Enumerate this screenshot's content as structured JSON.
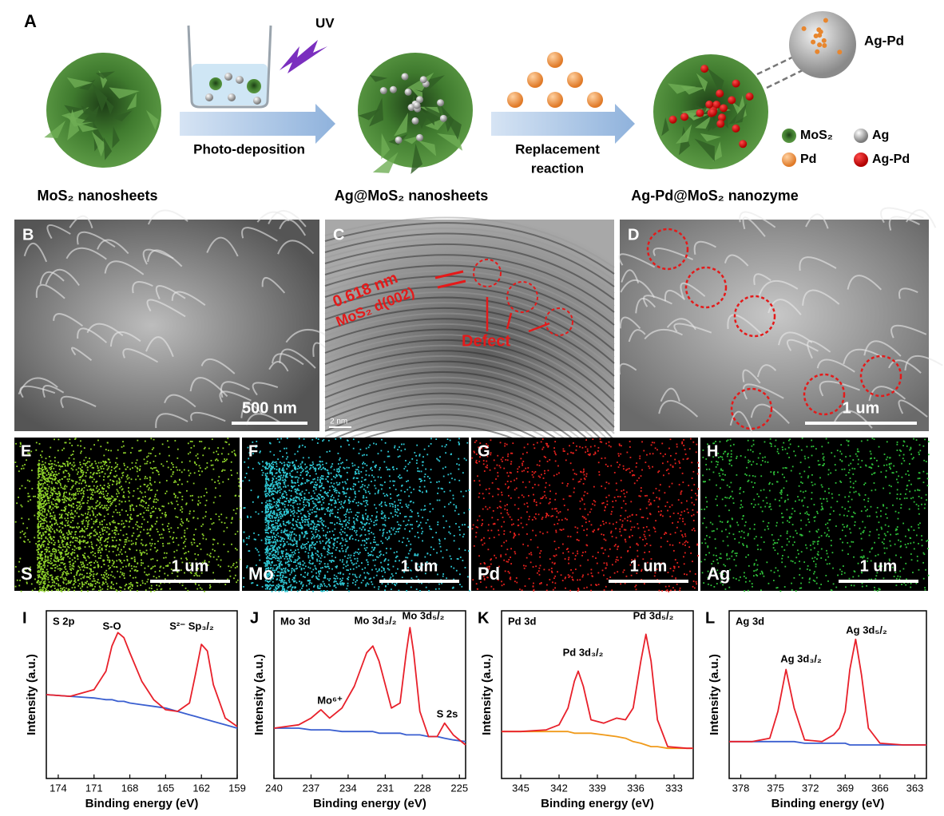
{
  "schematic": {
    "label": "A",
    "uv": "UV",
    "step1": "Photo-deposition",
    "step2_lines": [
      "Replacement",
      "reaction"
    ],
    "stage_labels": [
      "MoS₂ nanosheets",
      "Ag@MoS₂ nanosheets",
      "Ag-Pd@MoS₂ nanozyme"
    ],
    "zoom_label": "Ag-Pd",
    "legend": [
      "MoS₂",
      "Ag",
      "Pd",
      "Ag-Pd"
    ]
  },
  "micrographs": [
    {
      "label": "B",
      "scale_bar": "500 nm"
    },
    {
      "label": "C",
      "scale_bar": "2 nm",
      "annotations": [
        "0.618 nm",
        "MoS₂ d(002)",
        "Defect"
      ]
    },
    {
      "label": "D",
      "scale_bar": "1 um"
    }
  ],
  "eds_maps": [
    {
      "label": "E",
      "element": "S",
      "scale_bar": "1 um",
      "color": "#8fd42a"
    },
    {
      "label": "F",
      "element": "Mo",
      "scale_bar": "1 um",
      "color": "#2ec9d6"
    },
    {
      "label": "G",
      "element": "Pd",
      "scale_bar": "1 um",
      "color": "#e8221e"
    },
    {
      "label": "H",
      "element": "Ag",
      "scale_bar": "1 um",
      "color": "#2fc23a"
    }
  ],
  "chart_data": [
    {
      "type": "line",
      "panel": "I",
      "title": "S 2p",
      "annotations": [
        "S-O",
        "S²⁻ Sp₃/₂"
      ],
      "x_label": "Binding energy (eV)",
      "y_label": "Intensity (a.u.)",
      "xlim": [
        175,
        159
      ],
      "xticks": [
        174,
        171,
        168,
        165,
        162,
        159
      ],
      "ylim": [
        0,
        100
      ],
      "x": [
        175,
        173,
        171,
        170,
        169.5,
        169,
        168.5,
        168,
        167,
        166,
        165,
        164,
        163,
        162.5,
        162,
        161.5,
        161,
        160,
        159
      ],
      "series": [
        {
          "color": "#e8202a",
          "values": [
            50,
            49,
            53,
            64,
            79,
            87,
            84,
            75,
            58,
            47,
            41,
            40,
            45,
            62,
            80,
            76,
            56,
            36,
            31
          ]
        },
        {
          "color": "#3a5fd0",
          "values": [
            50,
            49,
            48,
            47,
            47,
            46,
            46,
            45,
            44,
            43,
            42,
            40,
            38,
            37,
            36,
            35,
            34,
            32,
            30
          ]
        }
      ]
    },
    {
      "type": "line",
      "panel": "J",
      "title": "Mo 3d",
      "annotations": [
        "Mo⁶⁺",
        "Mo 3d₃/₂",
        "Mo 3d₅/₂",
        "S 2s"
      ],
      "x_label": "Binding energy (eV)",
      "y_label": "Intensity (a.u.)",
      "xlim": [
        240,
        224.5
      ],
      "xticks": [
        240,
        237,
        234,
        231,
        228,
        225
      ],
      "ylim": [
        0,
        100
      ],
      "x": [
        240,
        238,
        237,
        236.2,
        235.5,
        234.5,
        233.5,
        232.5,
        232,
        231.5,
        230.5,
        229.8,
        229.3,
        229,
        228.7,
        228.2,
        227.5,
        226.8,
        226.2,
        225.5,
        224.5
      ],
      "series": [
        {
          "color": "#e8202a",
          "values": [
            30,
            32,
            36,
            41,
            36,
            42,
            55,
            75,
            79,
            70,
            42,
            45,
            75,
            90,
            75,
            40,
            25,
            25,
            33,
            26,
            20
          ]
        },
        {
          "color": "#3a5fd0",
          "values": [
            30,
            30,
            29,
            29,
            29,
            28,
            28,
            28,
            28,
            27,
            27,
            27,
            26,
            26,
            26,
            26,
            25,
            25,
            24,
            23,
            22
          ]
        }
      ]
    },
    {
      "type": "line",
      "panel": "K",
      "title": "Pd 3d",
      "annotations": [
        "Pd 3d₃/₂",
        "Pd 3d₅/₂"
      ],
      "x_label": "Binding energy (eV)",
      "y_label": "Intensity (a.u.)",
      "xlim": [
        346.5,
        331.5
      ],
      "xticks": [
        345,
        342,
        339,
        336,
        333
      ],
      "ylim": [
        0,
        100
      ],
      "x": [
        346.5,
        345,
        343,
        342,
        341.3,
        340.8,
        340.5,
        340.1,
        339.5,
        338.5,
        337.5,
        336.8,
        336.2,
        335.6,
        335.2,
        334.8,
        334.3,
        333.5,
        332,
        331.5
      ],
      "series": [
        {
          "color": "#e8202a",
          "values": [
            28,
            28,
            29,
            32,
            42,
            58,
            64,
            55,
            35,
            33,
            36,
            35,
            42,
            70,
            86,
            70,
            35,
            19,
            18,
            18
          ]
        },
        {
          "color": "#f09a1a",
          "values": [
            28,
            28,
            28,
            28,
            28,
            27,
            27,
            27,
            27,
            26,
            25,
            24,
            22,
            21,
            20,
            19,
            19,
            18,
            18,
            18
          ]
        }
      ]
    },
    {
      "type": "line",
      "panel": "L",
      "title": "Ag 3d",
      "annotations": [
        "Ag 3d₃/₂",
        "Ag 3d₅/₂"
      ],
      "x_label": "Binding energy (eV)",
      "y_label": "Intensity (a.u.)",
      "xlim": [
        379,
        362
      ],
      "xticks": [
        378,
        375,
        372,
        369,
        366,
        363
      ],
      "ylim": [
        0,
        100
      ],
      "x": [
        379,
        377,
        375.5,
        374.8,
        374.1,
        373.4,
        372.5,
        371,
        370,
        369.5,
        369,
        368.6,
        368.1,
        367.6,
        367,
        366,
        364,
        362
      ],
      "series": [
        {
          "color": "#e8202a",
          "values": [
            22,
            22,
            24,
            40,
            65,
            42,
            23,
            22,
            26,
            30,
            40,
            65,
            83,
            62,
            30,
            21,
            20,
            20
          ]
        },
        {
          "color": "#3a5fd0",
          "values": [
            22,
            22,
            22,
            22,
            22,
            22,
            21,
            21,
            21,
            21,
            21,
            20,
            20,
            20,
            20,
            20,
            20,
            20
          ]
        }
      ]
    }
  ]
}
